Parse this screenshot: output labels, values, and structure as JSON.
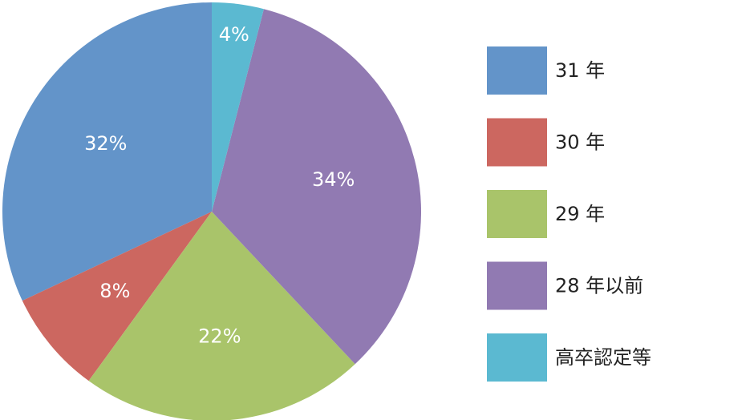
{
  "chart_data": {
    "type": "pie",
    "categories": [
      "31 年",
      "30 年",
      "29 年",
      "28 年以前",
      "高卒認定等"
    ],
    "values": [
      32,
      8,
      22,
      34,
      4
    ],
    "value_labels": [
      "32%",
      "8%",
      "22%",
      "34%",
      "4%"
    ],
    "colors": [
      "#6394c9",
      "#cc6760",
      "#a9c46a",
      "#917ab2",
      "#5bb9d1"
    ],
    "legend": "right"
  }
}
